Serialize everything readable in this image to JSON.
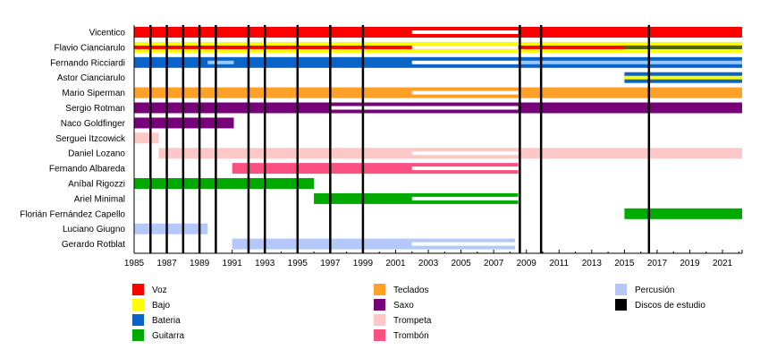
{
  "chart_data": {
    "type": "timeline",
    "title": "",
    "xlabel": "",
    "ylabel": "",
    "xlim": [
      1985,
      2022.2
    ],
    "x_ticks": [
      1985,
      1987,
      1989,
      1991,
      1993,
      1995,
      1997,
      1999,
      2001,
      2003,
      2005,
      2007,
      2009,
      2011,
      2013,
      2015,
      2017,
      2019,
      2021
    ],
    "grid": false,
    "colors": {
      "Voz": "#ff0000",
      "Bajo": "#ffff00",
      "Bateria": "#0a64c8",
      "Guitarra": "#00aa00",
      "Teclados": "#ffa028",
      "Saxo": "#780078",
      "Trompeta": "#ffc8c8",
      "Trombón": "#fa5082",
      "Percusión": "#b4c8fa",
      "Percusión (alt)": "#96c8ff",
      "Guitarra (alt)": "#446a10",
      "Discos de estudio": "#000000",
      "hiatus": "#ffffff"
    },
    "members": [
      {
        "name": "Vicentico",
        "bars": [
          {
            "role": "Voz",
            "start": 1985,
            "end": 2022.2,
            "layer": "full"
          },
          {
            "role": "hiatus",
            "start": 2002,
            "end": 2008.5,
            "layer": "inner"
          }
        ]
      },
      {
        "name": "Flavio Cianciarulo",
        "bars": [
          {
            "role": "Bajo",
            "start": 1985,
            "end": 2022.2,
            "layer": "full"
          },
          {
            "role": "Voz",
            "start": 1985,
            "end": 2022.2,
            "layer": "inner"
          },
          {
            "role": "hiatus",
            "start": 2002,
            "end": 2008.5,
            "layer": "inner"
          },
          {
            "role": "Guitarra (alt)",
            "start": 2015,
            "end": 2022.2,
            "layer": "inner-half"
          }
        ]
      },
      {
        "name": "Fernando Ricciardi",
        "bars": [
          {
            "role": "Bateria",
            "start": 1985,
            "end": 2022.2,
            "layer": "full"
          },
          {
            "role": "Percusión (alt)",
            "start": 1989.5,
            "end": 1991.1,
            "layer": "inner"
          },
          {
            "role": "hiatus",
            "start": 2002,
            "end": 2008.5,
            "layer": "inner"
          },
          {
            "role": "Percusión (alt)",
            "start": 2008.5,
            "end": 2022.2,
            "layer": "inner"
          }
        ]
      },
      {
        "name": "Astor Cianciarulo",
        "bars": [
          {
            "role": "Bateria",
            "start": 2015,
            "end": 2022.2,
            "layer": "full"
          },
          {
            "role": "Bajo",
            "start": 2015,
            "end": 2022.2,
            "layer": "inner"
          }
        ]
      },
      {
        "name": "Mario Siperman",
        "bars": [
          {
            "role": "Teclados",
            "start": 1985,
            "end": 2022.2,
            "layer": "full"
          },
          {
            "role": "hiatus",
            "start": 2002,
            "end": 2008.5,
            "layer": "inner"
          }
        ]
      },
      {
        "name": "Sergio Rotman",
        "bars": [
          {
            "role": "Saxo",
            "start": 1985,
            "end": 2022.2,
            "layer": "full"
          },
          {
            "role": "hiatus",
            "start": 1997,
            "end": 2008.5,
            "layer": "inner"
          }
        ]
      },
      {
        "name": "Naco Goldfinger",
        "bars": [
          {
            "role": "Saxo",
            "start": 1985,
            "end": 1991.1,
            "layer": "full"
          }
        ]
      },
      {
        "name": "Serguei Itzcowick",
        "bars": [
          {
            "role": "Trompeta",
            "start": 1985,
            "end": 1986.5,
            "layer": "full"
          }
        ]
      },
      {
        "name": "Daniel Lozano",
        "bars": [
          {
            "role": "Trompeta",
            "start": 1986.5,
            "end": 2022.2,
            "layer": "full"
          },
          {
            "role": "hiatus",
            "start": 2002,
            "end": 2008.5,
            "layer": "inner"
          }
        ]
      },
      {
        "name": "Fernando Albareda",
        "bars": [
          {
            "role": "Trombón",
            "start": 1991,
            "end": 2008.5,
            "layer": "full"
          },
          {
            "role": "hiatus",
            "start": 2002,
            "end": 2008.5,
            "layer": "inner"
          }
        ]
      },
      {
        "name": "Aníbal Rigozzi",
        "bars": [
          {
            "role": "Guitarra",
            "start": 1985,
            "end": 1996,
            "layer": "full"
          }
        ]
      },
      {
        "name": "Ariel Minimal",
        "bars": [
          {
            "role": "Guitarra",
            "start": 1996,
            "end": 2008.5,
            "layer": "full"
          },
          {
            "role": "hiatus",
            "start": 2002,
            "end": 2008.5,
            "layer": "inner"
          }
        ]
      },
      {
        "name": "Florián Fernández Capello",
        "bars": [
          {
            "role": "Guitarra",
            "start": 2015,
            "end": 2022.2,
            "layer": "full"
          }
        ]
      },
      {
        "name": "Luciano Giugno",
        "bars": [
          {
            "role": "Percusión",
            "start": 1985,
            "end": 1989.5,
            "layer": "full"
          }
        ]
      },
      {
        "name": "Gerardo Rotblat",
        "bars": [
          {
            "role": "Percusión",
            "start": 1991,
            "end": 2008.3,
            "layer": "full"
          },
          {
            "role": "hiatus",
            "start": 2002,
            "end": 2008.3,
            "layer": "inner"
          }
        ]
      }
    ],
    "studio_albums": [
      1986,
      1987,
      1988,
      1989,
      1990,
      1992,
      1993,
      1995,
      1997,
      1999,
      2008.6,
      2009.9,
      2016.5
    ],
    "legend": {
      "placement": "bottom",
      "columns": [
        [
          {
            "label": "Voz",
            "color": "#ff0000"
          },
          {
            "label": "Bajo",
            "color": "#ffff00"
          },
          {
            "label": "Bateria",
            "color": "#0a64c8"
          },
          {
            "label": "Guitarra",
            "color": "#00aa00"
          }
        ],
        [
          {
            "label": "Teclados",
            "color": "#ffa028"
          },
          {
            "label": "Saxo",
            "color": "#780078"
          },
          {
            "label": "Trompeta",
            "color": "#ffc8c8"
          },
          {
            "label": "Trombón",
            "color": "#fa5082"
          }
        ],
        [
          {
            "label": "Percusión",
            "color": "#b4c8fa"
          },
          {
            "label": "Discos de estudio",
            "color": "#000000"
          }
        ]
      ]
    }
  }
}
